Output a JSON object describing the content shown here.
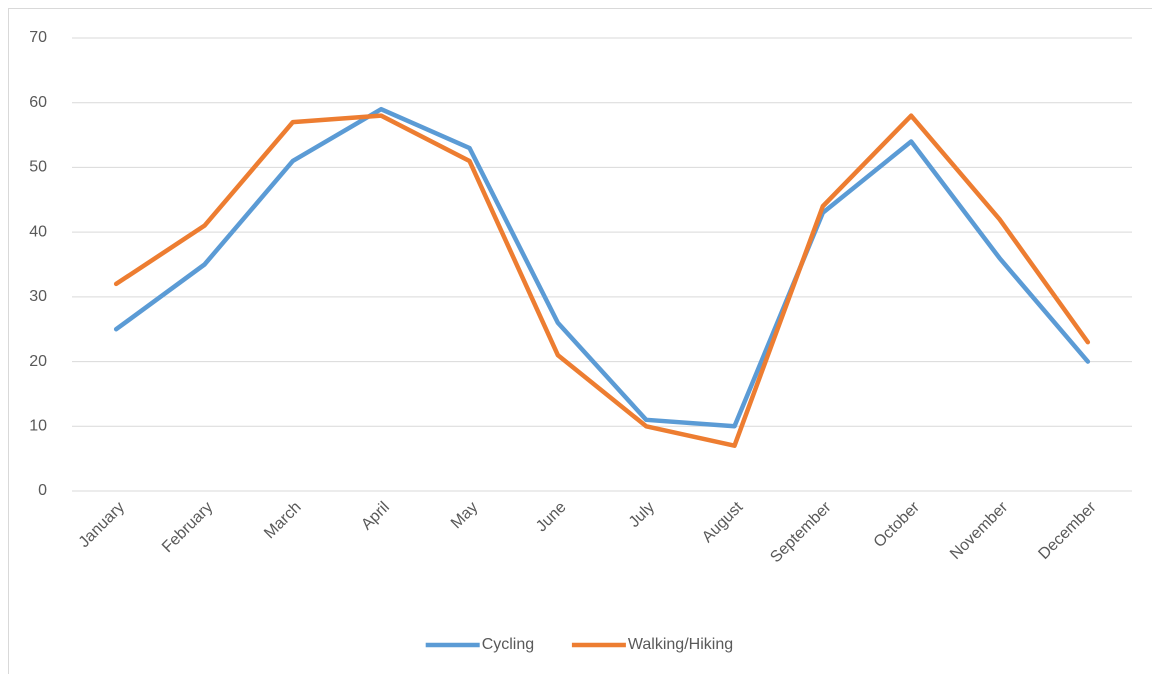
{
  "chart_data": {
    "type": "line",
    "categories": [
      "January",
      "February",
      "March",
      "April",
      "May",
      "June",
      "July",
      "August",
      "September",
      "October",
      "November",
      "December"
    ],
    "series": [
      {
        "name": "Cycling",
        "color": "#5b9bd5",
        "values": [
          25,
          35,
          51,
          59,
          53,
          26,
          11,
          10,
          43,
          54,
          36,
          20
        ]
      },
      {
        "name": "Walking/Hiking",
        "color": "#ed7d31",
        "values": [
          32,
          41,
          57,
          58,
          51,
          21,
          10,
          7,
          44,
          58,
          42,
          23
        ]
      }
    ],
    "ylim": [
      0,
      70
    ],
    "yticks": [
      0,
      10,
      20,
      30,
      40,
      50,
      60,
      70
    ],
    "grid": true,
    "legend": "bottom"
  }
}
